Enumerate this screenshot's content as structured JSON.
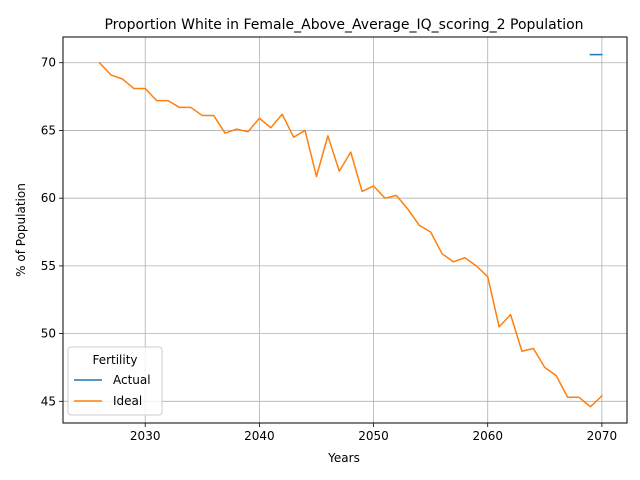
{
  "chart_data": {
    "type": "line",
    "title": "Proportion White in Female_Above_Average_IQ_scoring_2 Population",
    "xlabel": "Years",
    "ylabel": "% of Population",
    "xlim": [
      2022.8,
      2072.2
    ],
    "ylim": [
      43.4,
      71.9
    ],
    "xticks": [
      2030,
      2040,
      2050,
      2060,
      2070
    ],
    "yticks": [
      45,
      50,
      55,
      60,
      65,
      70
    ],
    "grid": true,
    "legend": {
      "title": "Fertility",
      "placement": "lower-left"
    },
    "series": [
      {
        "name": "Actual",
        "color": "#1f77b4",
        "x": [
          2069,
          2070
        ],
        "y": [
          70.6,
          70.6
        ]
      },
      {
        "name": "Ideal",
        "color": "#ff7f0e",
        "x": [
          2026,
          2027,
          2028,
          2029,
          2030,
          2031,
          2032,
          2033,
          2034,
          2035,
          2036,
          2037,
          2038,
          2039,
          2040,
          2041,
          2042,
          2043,
          2044,
          2045,
          2046,
          2047,
          2048,
          2049,
          2050,
          2051,
          2052,
          2053,
          2054,
          2055,
          2056,
          2057,
          2058,
          2059,
          2060,
          2061,
          2062,
          2063,
          2064,
          2065,
          2066,
          2067,
          2068,
          2069,
          2070
        ],
        "y": [
          70.0,
          69.1,
          68.8,
          68.1,
          68.1,
          67.2,
          67.2,
          66.7,
          66.7,
          66.1,
          66.1,
          64.8,
          65.1,
          64.9,
          65.9,
          65.2,
          66.2,
          64.5,
          65.0,
          61.6,
          64.6,
          62.0,
          63.4,
          60.5,
          60.9,
          60.0,
          60.2,
          59.2,
          58.0,
          57.5,
          55.9,
          55.3,
          55.6,
          55.0,
          54.2,
          50.5,
          51.4,
          48.7,
          48.9,
          47.5,
          46.9,
          45.3,
          45.3,
          44.6,
          45.4
        ]
      }
    ]
  }
}
